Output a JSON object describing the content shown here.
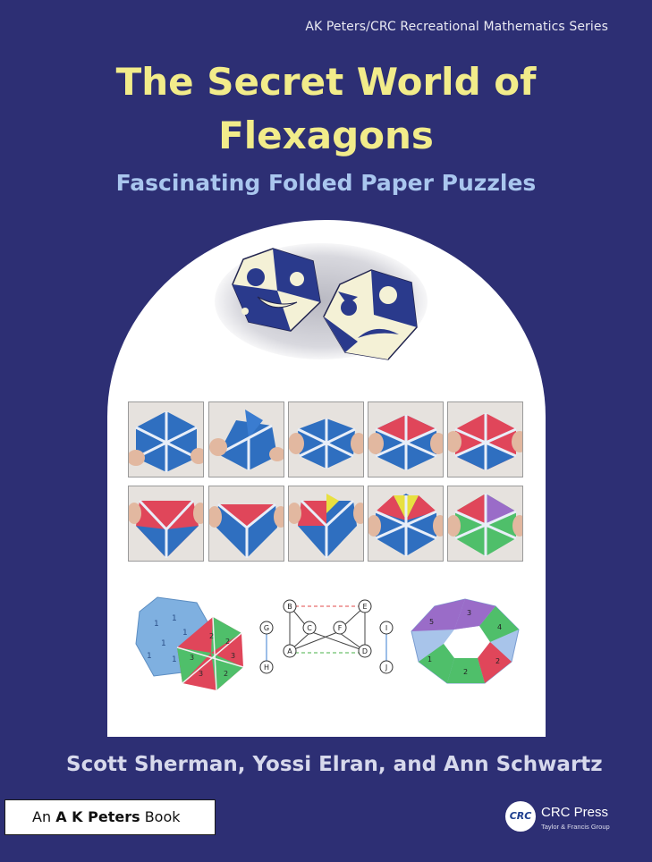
{
  "series": "AK Peters/CRC Recreational Mathematics Series",
  "title_line1": "The Secret World of",
  "title_line2": "Flexagons",
  "subtitle": "Fascinating Folded Paper Puzzles",
  "authors": "Scott Sherman, Yossi Elran, and Ann Schwartz",
  "imprint": {
    "prefix": "An",
    "brand": "A K Peters",
    "suffix": "Book"
  },
  "publisher": {
    "logo": "CRC",
    "name": "CRC Press",
    "tagline": "Taylor & Francis Group"
  },
  "graph_labels": [
    "B",
    "E",
    "G",
    "C",
    "F",
    "I",
    "A",
    "D",
    "H",
    "J"
  ],
  "colors": {
    "background": "#2d2f74",
    "title": "#f2ec8a",
    "subtitle": "#a9c6ee",
    "flex_blue": "#2f6fc0",
    "flex_red": "#e0465a",
    "flex_green": "#4fbf6a",
    "flex_yellow": "#e8e040",
    "flex_purple": "#9a6cc8"
  }
}
